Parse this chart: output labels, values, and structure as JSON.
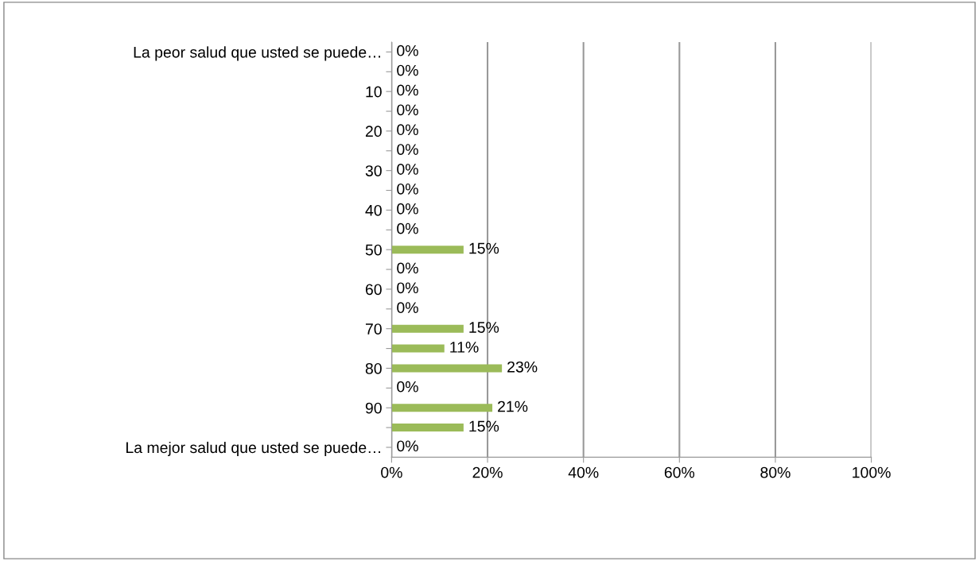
{
  "chart_data": {
    "type": "bar",
    "orientation": "horizontal",
    "categories": [
      "La peor salud que usted se puede…",
      null,
      "10",
      null,
      "20",
      null,
      "30",
      null,
      "40",
      null,
      "50",
      null,
      "60",
      null,
      "70",
      null,
      "80",
      null,
      "90",
      null,
      "La mejor salud que usted se puede…"
    ],
    "values": [
      0,
      0,
      0,
      0,
      0,
      0,
      0,
      0,
      0,
      0,
      15,
      0,
      0,
      0,
      15,
      11,
      23,
      0,
      21,
      15,
      0
    ],
    "value_labels": [
      "0%",
      "0%",
      "0%",
      "0%",
      "0%",
      "0%",
      "0%",
      "0%",
      "0%",
      "0%",
      "15%",
      "0%",
      "0%",
      "0%",
      "15%",
      "11%",
      "23%",
      "0%",
      "21%",
      "15%",
      "0%"
    ],
    "color": "#9bbb59",
    "xlim": [
      0,
      100
    ],
    "xticks": [
      {
        "value": 0,
        "label": "0%"
      },
      {
        "value": 20,
        "label": "20%"
      },
      {
        "value": 40,
        "label": "40%"
      },
      {
        "value": 60,
        "label": "60%"
      },
      {
        "value": 80,
        "label": "80%"
      },
      {
        "value": 100,
        "label": "100%"
      }
    ],
    "grid": "x"
  }
}
